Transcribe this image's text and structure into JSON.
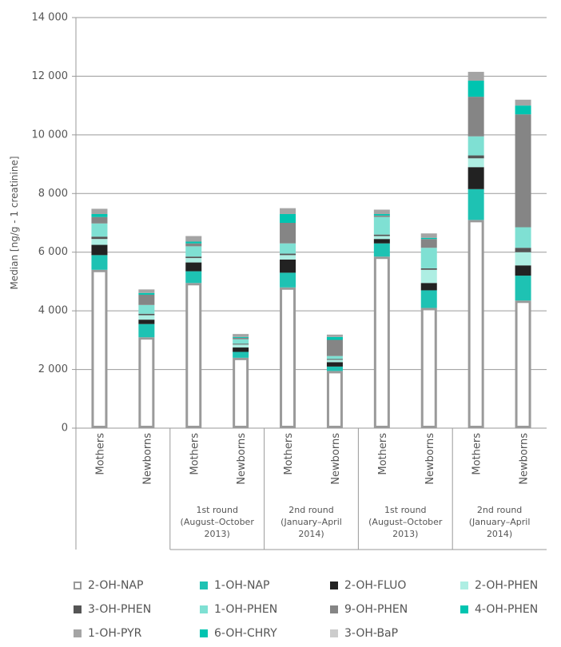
{
  "chart_data": {
    "type": "bar",
    "stacked": true,
    "ylabel": "Median [ng/g - 1 creatinine]",
    "ylim": [
      0,
      14000
    ],
    "y_ticks": [
      0,
      2000,
      4000,
      6000,
      8000,
      10000,
      12000,
      14000
    ],
    "y_tick_labels": [
      "0",
      "2 000",
      "4 000",
      "6 000",
      "8 000",
      "10 000",
      "12 000",
      "14 000"
    ],
    "grid": "horizontal",
    "legend_position": "bottom",
    "categories": [
      "Mothers",
      "Newborns",
      "Mothers",
      "Newborns",
      "Mothers",
      "Newborns",
      "Mothers",
      "Newborns",
      "Mothers",
      "Newborns"
    ],
    "groups": [
      {
        "label": "",
        "categories": [
          0,
          1
        ]
      },
      {
        "label": "1st round (August–October 2013)",
        "categories": [
          2,
          3
        ]
      },
      {
        "label": "2nd round (January–April 2014)",
        "categories": [
          4,
          5
        ]
      },
      {
        "label": "1st round (August–October 2013)",
        "categories": [
          6,
          7
        ]
      },
      {
        "label": "2nd round (January–April 2014)",
        "categories": [
          8,
          9
        ]
      }
    ],
    "group_label_lines": [
      [],
      [
        "1st round",
        "(August–October",
        "2013)"
      ],
      [
        "2nd round",
        "(January–April",
        "2014)"
      ],
      [
        "1st round",
        "(August–October",
        "2013)"
      ],
      [
        "2nd round",
        "(January–April",
        "2014)"
      ]
    ],
    "series": [
      {
        "name": "2-OH-NAP",
        "color": "#ffffff",
        "stroke": "#9a9a9a",
        "values": [
          5400,
          3100,
          4950,
          2400,
          4800,
          1950,
          5850,
          4100,
          7100,
          4350
        ]
      },
      {
        "name": "1-OH-NAP",
        "color": "#1ec2b3",
        "values": [
          500,
          450,
          400,
          200,
          500,
          150,
          450,
          600,
          1050,
          850
        ]
      },
      {
        "name": "2-OH-FLUO",
        "color": "#222222",
        "values": [
          350,
          150,
          300,
          150,
          450,
          150,
          150,
          250,
          750,
          350
        ]
      },
      {
        "name": "2-OH-PHEN",
        "color": "#aeeee3",
        "values": [
          200,
          150,
          150,
          100,
          150,
          80,
          100,
          450,
          300,
          450
        ]
      },
      {
        "name": "3-OH-PHEN",
        "color": "#555555",
        "values": [
          80,
          50,
          50,
          30,
          50,
          30,
          50,
          50,
          100,
          150
        ]
      },
      {
        "name": "1-OH-PHEN",
        "color": "#7fe0d3",
        "values": [
          450,
          300,
          350,
          150,
          350,
          100,
          600,
          700,
          650,
          700
        ]
      },
      {
        "name": "9-OH-PHEN",
        "color": "#858585",
        "values": [
          220,
          350,
          100,
          50,
          700,
          550,
          50,
          300,
          1350,
          3850
        ]
      },
      {
        "name": "4-OH-PHEN",
        "color": "#00c4b0",
        "values": [
          100,
          60,
          60,
          30,
          300,
          100,
          50,
          40,
          550,
          300
        ]
      },
      {
        "name": "1-OH-PYR",
        "color": "#a4a4a4",
        "values": [
          180,
          120,
          190,
          100,
          200,
          80,
          150,
          150,
          300,
          200
        ]
      },
      {
        "name": "6-OH-CHRY",
        "color": "#00c4b0",
        "values": [
          0,
          0,
          0,
          0,
          0,
          0,
          0,
          0,
          0,
          0
        ]
      },
      {
        "name": "3-OH-BaP",
        "color": "#cccccc",
        "values": [
          0,
          0,
          0,
          0,
          0,
          0,
          0,
          0,
          0,
          0
        ]
      }
    ]
  }
}
